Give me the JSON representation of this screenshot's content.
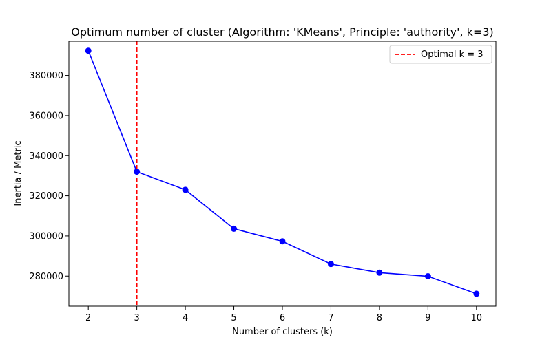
{
  "chart_data": {
    "type": "line",
    "title": "Optimum number of cluster (Algorithm: 'KMeans', Principle: 'authority', k=3)",
    "xlabel": "Number of clusters (k)",
    "ylabel": "Inertia / Metric",
    "x": [
      2,
      3,
      4,
      5,
      6,
      7,
      8,
      9,
      10
    ],
    "series": [
      {
        "values": [
          392300,
          332000,
          323000,
          303600,
          297300,
          286000,
          281700,
          279900,
          271200
        ],
        "color": "#0000ff",
        "marker": "circle"
      }
    ],
    "xlim": [
      1.6,
      10.4
    ],
    "ylim": [
      265000,
      397000
    ],
    "xticks": [
      2,
      3,
      4,
      5,
      6,
      7,
      8,
      9,
      10
    ],
    "yticks": [
      280000,
      300000,
      320000,
      340000,
      360000,
      380000
    ],
    "optimal_line": {
      "x": 3,
      "label": "Optimal k = 3",
      "color": "#ff0000",
      "style": "dashed"
    },
    "legend_position": "top-right",
    "grid": false
  }
}
